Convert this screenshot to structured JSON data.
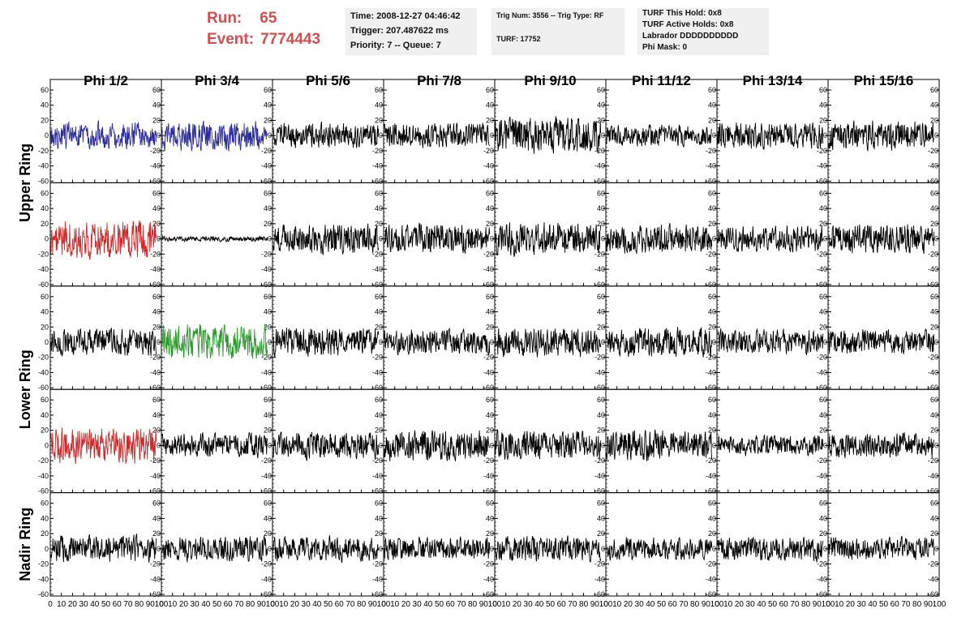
{
  "header": {
    "run_label": "Run:",
    "run_value": "65",
    "event_label": "Event:",
    "event_value": "7774443"
  },
  "info_panels": {
    "time": "Time: 2008-12-27 04:46:42",
    "trigger": "Trigger: 207.487622 ms",
    "priority_queue": "Priority: 7 -- Queue: 7",
    "trig_num_type": "Trig Num: 3556 -- Trig Type: RF",
    "turf": "TURF: 17752",
    "turf_this_hold": "TURF This Hold: 0x8",
    "turf_active_holds": "TURF Active Holds: 0x8",
    "labrador": "Labrador DDDDDDDDDD",
    "phi_mask": "Phi Mask: 0"
  },
  "chart_data": {
    "type": "line",
    "columns": [
      "Phi 1/2",
      "Phi 3/4",
      "Phi 5/6",
      "Phi 7/8",
      "Phi 9/10",
      "Phi 11/12",
      "Phi 13/14",
      "Phi 15/16"
    ],
    "row_groups": [
      {
        "label": "Upper Ring",
        "rows": [
          0,
          1
        ]
      },
      {
        "label": "Lower Ring",
        "rows": [
          2,
          3
        ]
      },
      {
        "label": "Nadir Ring",
        "rows": [
          4
        ]
      }
    ],
    "ylim": [
      -60,
      60
    ],
    "y_ticks": [
      -60,
      -40,
      -20,
      0,
      20,
      40,
      60
    ],
    "xlim": [
      0,
      100
    ],
    "x_ticks": [
      0,
      10,
      20,
      30,
      40,
      50,
      60,
      70,
      80,
      90,
      100
    ],
    "samples_per_trace": 260,
    "colors": {
      "default": "#000000",
      "blue": "#2b2b9a",
      "red": "#cc2a2a",
      "green": "#2a9a2a"
    },
    "traces": [
      [
        {
          "color": "#2b2b9a",
          "amplitude": 13
        },
        {
          "color": "#2b2b9a",
          "amplitude": 14
        },
        {
          "color": "#000000",
          "amplitude": 12
        },
        {
          "color": "#000000",
          "amplitude": 12
        },
        {
          "color": "#000000",
          "amplitude": 18
        },
        {
          "color": "#000000",
          "amplitude": 10
        },
        {
          "color": "#000000",
          "amplitude": 13
        },
        {
          "color": "#000000",
          "amplitude": 14
        }
      ],
      [
        {
          "color": "#cc2a2a",
          "amplitude": 19
        },
        {
          "color": "#000000",
          "amplitude": 2.5
        },
        {
          "color": "#000000",
          "amplitude": 14
        },
        {
          "color": "#000000",
          "amplitude": 14
        },
        {
          "color": "#000000",
          "amplitude": 16
        },
        {
          "color": "#000000",
          "amplitude": 14
        },
        {
          "color": "#000000",
          "amplitude": 12
        },
        {
          "color": "#000000",
          "amplitude": 14
        }
      ],
      [
        {
          "color": "#000000",
          "amplitude": 13
        },
        {
          "color": "#2a9a2a",
          "amplitude": 17
        },
        {
          "color": "#000000",
          "amplitude": 14
        },
        {
          "color": "#000000",
          "amplitude": 12
        },
        {
          "color": "#000000",
          "amplitude": 14
        },
        {
          "color": "#000000",
          "amplitude": 14
        },
        {
          "color": "#000000",
          "amplitude": 12
        },
        {
          "color": "#000000",
          "amplitude": 12
        }
      ],
      [
        {
          "color": "#cc2a2a",
          "amplitude": 17
        },
        {
          "color": "#000000",
          "amplitude": 12
        },
        {
          "color": "#000000",
          "amplitude": 13
        },
        {
          "color": "#000000",
          "amplitude": 15
        },
        {
          "color": "#000000",
          "amplitude": 14
        },
        {
          "color": "#000000",
          "amplitude": 15
        },
        {
          "color": "#000000",
          "amplitude": 10
        },
        {
          "color": "#000000",
          "amplitude": 12
        }
      ],
      [
        {
          "color": "#000000",
          "amplitude": 13
        },
        {
          "color": "#000000",
          "amplitude": 12
        },
        {
          "color": "#000000",
          "amplitude": 12
        },
        {
          "color": "#000000",
          "amplitude": 11
        },
        {
          "color": "#000000",
          "amplitude": 12
        },
        {
          "color": "#000000",
          "amplitude": 11
        },
        {
          "color": "#000000",
          "amplitude": 12
        },
        {
          "color": "#000000",
          "amplitude": 11
        }
      ]
    ]
  }
}
